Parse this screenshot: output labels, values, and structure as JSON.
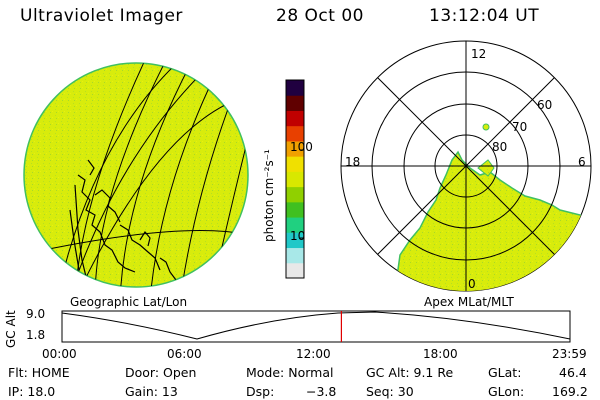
{
  "header": {
    "instrument": "Ultraviolet Imager",
    "date": "28 Oct 00",
    "time": "13:12:04 UT"
  },
  "panels": {
    "left_label": "Geographic Lat/Lon",
    "right_label": "Apex MLat/MLT"
  },
  "colorbar": {
    "unit_label": "photon cm⁻²s⁻¹",
    "ticks": [
      "100",
      "10"
    ],
    "scale": "log",
    "colors": [
      "#e8e8e8",
      "#a8e8e8",
      "#20c8c8",
      "#20d080",
      "#40c020",
      "#90d000",
      "#d8e800",
      "#f0e000",
      "#f0a000",
      "#e84000",
      "#c00000",
      "#600000",
      "#200040"
    ]
  },
  "polar": {
    "mlt_labels": [
      "12",
      "18",
      "6",
      "0"
    ],
    "mlat_labels": [
      "60",
      "70",
      "80"
    ]
  },
  "altitude_plot": {
    "ylabel": "GC Alt",
    "yticks": [
      "9.0",
      "1.8"
    ],
    "xticks": [
      "00:00",
      "06:00",
      "12:00",
      "18:00",
      "23:59"
    ],
    "current_time_fraction": 0.55
  },
  "info": {
    "flt": "Flt: HOME",
    "door": "Door: Open",
    "mode": "Mode: Normal",
    "gc_alt": "GC Alt: 9.1 Re",
    "glat": "GLat:",
    "glat_val": "46.4",
    "ip": "IP: 18.0",
    "gain": "Gain: 13",
    "dsp": "Dsp:",
    "dsp_val": "−3.8",
    "seq": "Seq: 30",
    "glon": "GLon:",
    "glon_val": "169.2"
  },
  "colors": {
    "fill": "#d8ec0c",
    "accent_red": "#e00000"
  }
}
